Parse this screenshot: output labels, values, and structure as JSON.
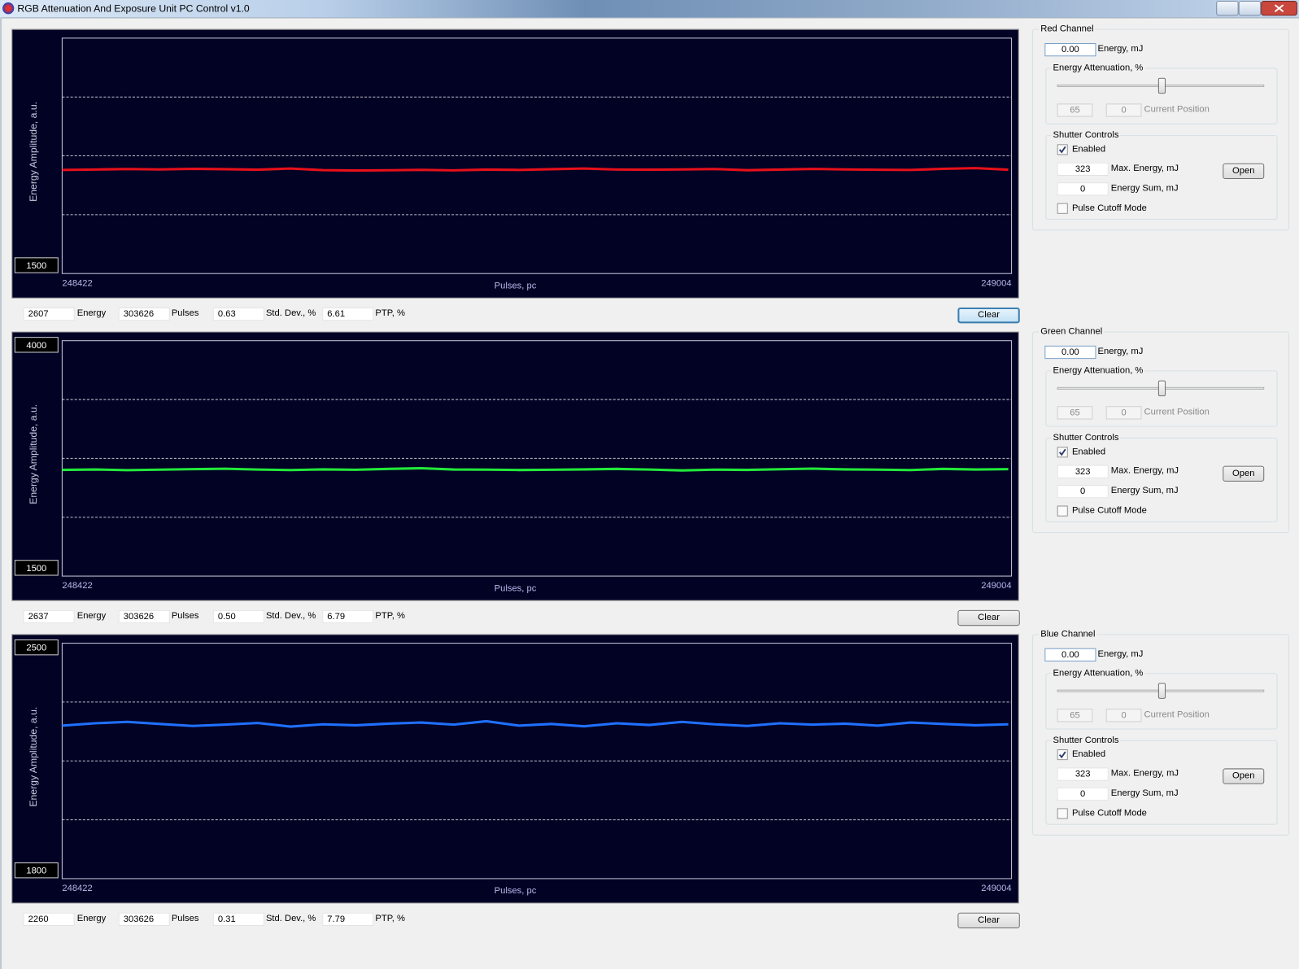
{
  "window_title": "RGB Attenuation And Exposure Unit PC Control v1.0",
  "chart_data": [
    {
      "type": "line",
      "y_label": "Energy Amplitude, a.u.",
      "x_label": "Pulses, pc",
      "xlim": [
        248422,
        249004
      ],
      "xticks": [
        248422,
        249004
      ],
      "ylim": [
        1500,
        4000
      ],
      "yticks": [
        1500
      ],
      "ygrid": [
        2125,
        2750,
        3375
      ],
      "x": [
        248422,
        248442,
        248462,
        248482,
        248502,
        248522,
        248542,
        248562,
        248582,
        248602,
        248622,
        248642,
        248662,
        248682,
        248702,
        248722,
        248742,
        248762,
        248782,
        248802,
        248822,
        248842,
        248862,
        248882,
        248902,
        248922,
        248942,
        248962,
        248982,
        249002
      ],
      "series": [
        {
          "color": "#e8101a",
          "values": [
            2600,
            2605,
            2610,
            2606,
            2612,
            2608,
            2603,
            2615,
            2598,
            2594,
            2597,
            2601,
            2596,
            2604,
            2600,
            2608,
            2615,
            2605,
            2603,
            2606,
            2610,
            2598,
            2604,
            2611,
            2606,
            2602,
            2600,
            2612,
            2620,
            2603
          ]
        }
      ]
    },
    {
      "type": "line",
      "y_label": "Energy Amplitude, a.u.",
      "x_label": "Pulses, pc",
      "xlim": [
        248422,
        249004
      ],
      "xticks": [
        248422,
        249004
      ],
      "ylim": [
        1500,
        4000
      ],
      "yticks": [
        1500,
        4000
      ],
      "ygrid": [
        2125,
        2750,
        3375
      ],
      "x": [
        248422,
        248442,
        248462,
        248482,
        248502,
        248522,
        248542,
        248562,
        248582,
        248602,
        248622,
        248642,
        248662,
        248682,
        248702,
        248722,
        248742,
        248762,
        248782,
        248802,
        248822,
        248842,
        248862,
        248882,
        248902,
        248922,
        248942,
        248962,
        248982,
        249002
      ],
      "series": [
        {
          "color": "#22e83a",
          "values": [
            2628,
            2632,
            2625,
            2630,
            2636,
            2640,
            2631,
            2626,
            2633,
            2629,
            2638,
            2645,
            2632,
            2630,
            2627,
            2629,
            2633,
            2638,
            2631,
            2622,
            2630,
            2628,
            2635,
            2641,
            2633,
            2630,
            2626,
            2638,
            2632,
            2636
          ]
        }
      ]
    },
    {
      "type": "line",
      "y_label": "Energy Amplitude, a.u.",
      "x_label": "Pulses, pc",
      "xlim": [
        248422,
        249004
      ],
      "xticks": [
        248422,
        249004
      ],
      "ylim": [
        1800,
        2500
      ],
      "yticks": [
        1800,
        2500
      ],
      "ygrid": [
        1975,
        2150,
        2325
      ],
      "x": [
        248422,
        248442,
        248462,
        248482,
        248502,
        248522,
        248542,
        248562,
        248582,
        248602,
        248622,
        248642,
        248662,
        248682,
        248702,
        248722,
        248742,
        248762,
        248782,
        248802,
        248822,
        248842,
        248862,
        248882,
        248902,
        248922,
        248942,
        248962,
        248982,
        249002
      ],
      "series": [
        {
          "color": "#2070ff",
          "values": [
            2255,
            2262,
            2266,
            2260,
            2254,
            2258,
            2263,
            2252,
            2259,
            2256,
            2261,
            2264,
            2258,
            2268,
            2255,
            2260,
            2253,
            2262,
            2257,
            2266,
            2259,
            2254,
            2262,
            2258,
            2261,
            2255,
            2264,
            2260,
            2256,
            2259
          ]
        }
      ]
    }
  ],
  "channels": [
    {
      "stats": [
        {
          "value": "2607",
          "label": "Energy"
        },
        {
          "value": "303626",
          "label": "Pulses"
        },
        {
          "value": "0.63",
          "label": "Std. Dev., %"
        },
        {
          "value": "6.61",
          "label": "PTP, %"
        }
      ],
      "clear_button": "Clear",
      "control": {
        "title": "Red Channel",
        "energy": "0.00",
        "energy_label": "Energy, mJ",
        "attenuation_label": "Energy Attenuation, %",
        "attenuation": "65",
        "current_position": "0",
        "current_position_label": "Current Position",
        "shutter_title": "Shutter Controls",
        "enabled_label": "Enabled",
        "enabled": true,
        "max_energy": "323",
        "max_energy_label": "Max. Energy, mJ",
        "open_button": "Open",
        "energy_sum": "0",
        "energy_sum_label": "Energy Sum, mJ",
        "cutoff_label": "Pulse Cutoff Mode",
        "pulse_cutoff": false
      }
    },
    {
      "stats": [
        {
          "value": "2637",
          "label": "Energy"
        },
        {
          "value": "303626",
          "label": "Pulses"
        },
        {
          "value": "0.50",
          "label": "Std. Dev., %"
        },
        {
          "value": "6.79",
          "label": "PTP, %"
        }
      ],
      "clear_button": "Clear",
      "control": {
        "title": "Green Channel",
        "energy": "0.00",
        "energy_label": "Energy, mJ",
        "attenuation_label": "Energy Attenuation, %",
        "attenuation": "65",
        "current_position": "0",
        "current_position_label": "Current Position",
        "shutter_title": "Shutter Controls",
        "enabled_label": "Enabled",
        "enabled": true,
        "max_energy": "323",
        "max_energy_label": "Max. Energy, mJ",
        "open_button": "Open",
        "energy_sum": "0",
        "energy_sum_label": "Energy Sum, mJ",
        "cutoff_label": "Pulse Cutoff Mode",
        "pulse_cutoff": false
      }
    },
    {
      "stats": [
        {
          "value": "2260",
          "label": "Energy"
        },
        {
          "value": "303626",
          "label": "Pulses"
        },
        {
          "value": "0.31",
          "label": "Std. Dev., %"
        },
        {
          "value": "7.79",
          "label": "PTP, %"
        }
      ],
      "clear_button": "Clear",
      "control": {
        "title": "Blue Channel",
        "energy": "0.00",
        "energy_label": "Energy, mJ",
        "attenuation_label": "Energy Attenuation, %",
        "attenuation": "65",
        "current_position": "0",
        "current_position_label": "Current Position",
        "shutter_title": "Shutter Controls",
        "enabled_label": "Enabled",
        "enabled": true,
        "max_energy": "323",
        "max_energy_label": "Max. Energy, mJ",
        "open_button": "Open",
        "energy_sum": "0",
        "energy_sum_label": "Energy Sum, mJ",
        "cutoff_label": "Pulse Cutoff Mode",
        "pulse_cutoff": false
      }
    }
  ]
}
